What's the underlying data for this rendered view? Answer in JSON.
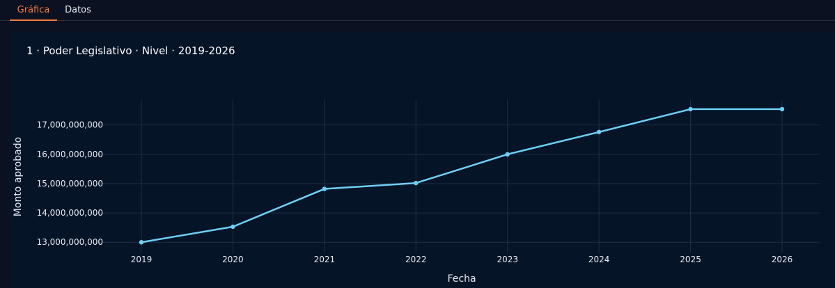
{
  "tabs": [
    {
      "label": "Gráfica",
      "active": true
    },
    {
      "label": "Datos",
      "active": false
    }
  ],
  "chart_data": {
    "type": "line",
    "title": "1 · Poder Legislativo · Nivel · 2019-2026",
    "xlabel": "Fecha",
    "ylabel": "Monto aprobado",
    "x": [
      "2019",
      "2020",
      "2021",
      "2022",
      "2023",
      "2024",
      "2025",
      "2026"
    ],
    "series": [
      {
        "values": [
          13000000000,
          13530000000,
          14820000000,
          15020000000,
          16000000000,
          16760000000,
          17540000000,
          17540000000
        ],
        "color": "#6ecff6"
      }
    ],
    "yticks": [
      "13,000,000,000",
      "14,000,000,000",
      "15,000,000,000",
      "16,000,000,000",
      "17,000,000,000"
    ],
    "ytick_values": [
      13000000000,
      14000000000,
      15000000000,
      16000000000,
      17000000000
    ],
    "ylim": [
      12650000000,
      17870000000
    ],
    "grid": true,
    "colors": {
      "background": "#0b1120",
      "plot_background": "#061428",
      "accent": "#f47c3c",
      "grid": "#1e2f45"
    }
  }
}
